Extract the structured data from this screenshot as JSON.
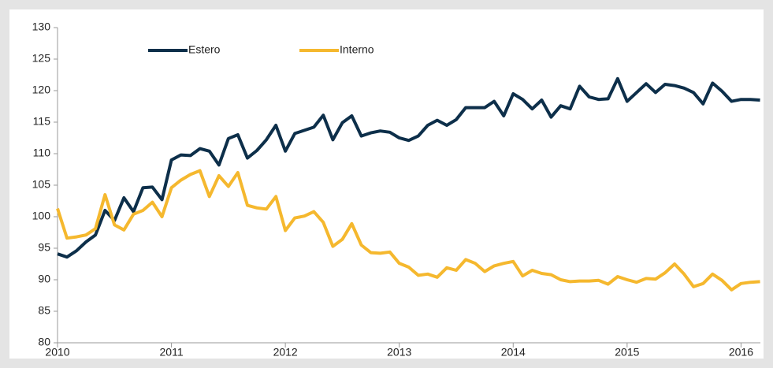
{
  "chart_data": {
    "type": "line",
    "x": [
      2010,
      2010.083,
      2010.167,
      2010.25,
      2010.333,
      2010.417,
      2010.5,
      2010.583,
      2010.667,
      2010.75,
      2010.833,
      2010.917,
      2011,
      2011.083,
      2011.167,
      2011.25,
      2011.333,
      2011.417,
      2011.5,
      2011.583,
      2011.667,
      2011.75,
      2011.833,
      2011.917,
      2012,
      2012.083,
      2012.167,
      2012.25,
      2012.333,
      2012.417,
      2012.5,
      2012.583,
      2012.667,
      2012.75,
      2012.833,
      2012.917,
      2013,
      2013.083,
      2013.167,
      2013.25,
      2013.333,
      2013.417,
      2013.5,
      2013.583,
      2013.667,
      2013.75,
      2013.833,
      2013.917,
      2014,
      2014.083,
      2014.167,
      2014.25,
      2014.333,
      2014.417,
      2014.5,
      2014.583,
      2014.667,
      2014.75,
      2014.833,
      2014.917,
      2015,
      2015.083,
      2015.167,
      2015.25,
      2015.333,
      2015.417,
      2015.5,
      2015.583,
      2015.667,
      2015.75,
      2015.833,
      2015.917,
      2016,
      2016.083,
      2016.167
    ],
    "series": [
      {
        "name": "Estero",
        "color": "#0d2f4a",
        "values": [
          94.1,
          93.6,
          94.6,
          96,
          97.1,
          101,
          99.4,
          103,
          100.8,
          104.6,
          104.7,
          102.7,
          109,
          109.8,
          109.7,
          110.8,
          110.4,
          108.2,
          112.4,
          113,
          109.3,
          110.5,
          112.2,
          114.5,
          110.4,
          113.2,
          113.7,
          114.2,
          116.1,
          112.2,
          114.9,
          116,
          112.8,
          113.3,
          113.6,
          113.4,
          112.5,
          112.1,
          112.8,
          114.5,
          115.3,
          114.5,
          115.4,
          117.3,
          117.3,
          117.3,
          118.3,
          116,
          119.5,
          118.6,
          117.1,
          118.5,
          115.8,
          117.6,
          117.1,
          120.7,
          119,
          118.6,
          118.7,
          121.9,
          118.3,
          119.7,
          121.1,
          119.7,
          121,
          120.8,
          120.4,
          119.7,
          117.9,
          121.2,
          119.9,
          118.3,
          118.6,
          118.6,
          118.5
        ]
      },
      {
        "name": "Interno",
        "color": "#f5b82e",
        "values": [
          101.3,
          96.6,
          96.8,
          97.1,
          98.1,
          103.5,
          98.7,
          97.9,
          100.4,
          101,
          102.3,
          100,
          104.6,
          105.8,
          106.7,
          107.3,
          103.2,
          106.5,
          104.8,
          107,
          101.8,
          101.4,
          101.2,
          103.2,
          97.8,
          99.8,
          100.1,
          100.8,
          99.1,
          95.3,
          96.4,
          98.9,
          95.5,
          94.3,
          94.2,
          94.4,
          92.6,
          92,
          90.7,
          90.9,
          90.4,
          91.9,
          91.5,
          93.2,
          92.6,
          91.3,
          92.2,
          92.6,
          92.9,
          90.6,
          91.5,
          91,
          90.8,
          90,
          89.7,
          89.8,
          89.8,
          89.9,
          89.3,
          90.5,
          90,
          89.6,
          90.2,
          90.1,
          91.1,
          92.5,
          90.9,
          88.9,
          89.4,
          90.9,
          89.9,
          88.4,
          89.4,
          89.6,
          89.7
        ]
      }
    ],
    "xlim": [
      2010,
      2016.17
    ],
    "xticks": [
      2010,
      2011,
      2012,
      2013,
      2014,
      2015,
      2016
    ],
    "ylim": [
      80,
      130
    ],
    "yticks": [
      80,
      85,
      90,
      95,
      100,
      105,
      110,
      115,
      120,
      125,
      130
    ],
    "grid": false,
    "legend": "top"
  }
}
